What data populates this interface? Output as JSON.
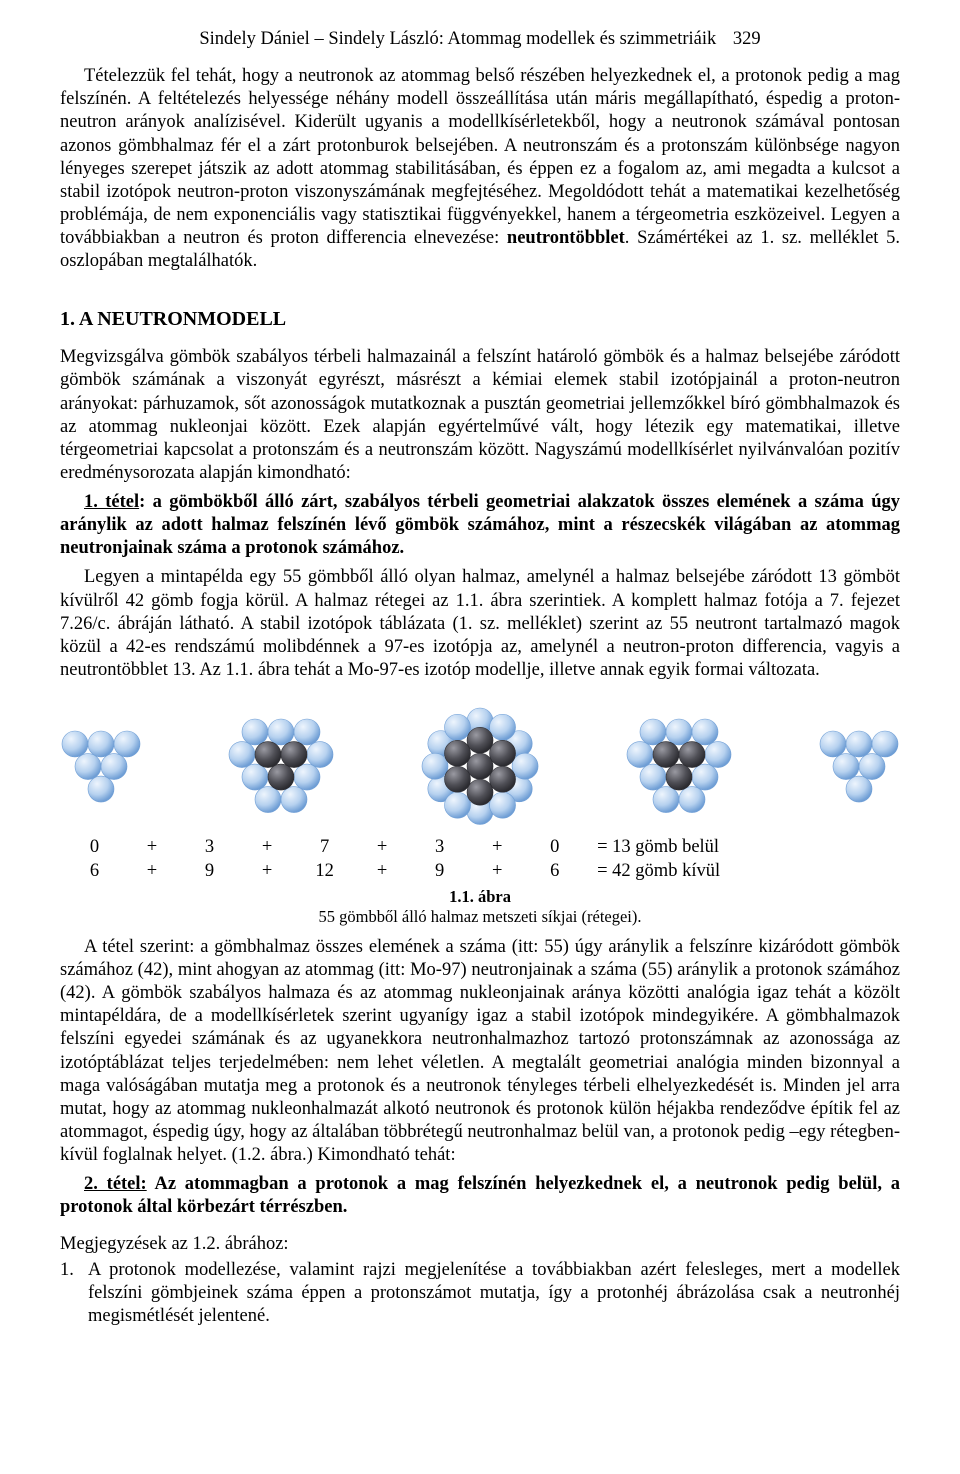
{
  "page": {
    "running_head_text": "Sindely Dániel – Sindely László: Atommag modellek és szimmetriáik",
    "page_number": "329"
  },
  "paragraphs": {
    "p1_a": "Tételezzük fel tehát, hogy a neutronok az atommag belső részében helyezkednek el, a protonok pedig a mag felszínén. A feltételezés helyessége néhány modell összeállítása után máris megállapítható, éspedig a proton-neutron arányok analízisével. Kiderült ugyanis a modellkísérletekből, hogy a neutronok számával pontosan azonos gömbhalmaz fér el a zárt protonburok belsejében. A neutronszám és a protonszám különbsége nagyon lényeges szerepet játszik az adott atommag stabilitásában, és éppen ez a fogalom az, ami megadta a kulcsot a stabil izotópok neutron-proton viszonyszámának megfejtéséhez. Megoldódott tehát a matematikai kezelhetőség problémája, de nem exponenciális vagy statisztikai függvényekkel, hanem a térgeometria eszközeivel. Legyen a továbbiakban a neutron és proton differencia elnevezése: ",
    "p1_bold": "neutrontöbblet",
    "p1_b": ". Számértékei az 1. sz. melléklet 5. oszlopában megtalálhatók.",
    "h2": "1.  A  NEUTRONMODELL",
    "p2": "Megvizsgálva gömbök szabályos térbeli halmazainál a felszínt határoló gömbök és a halmaz belsejébe záródott gömbök számának a viszonyát egyrészt, másrészt a kémiai elemek stabil izotópjainál a proton-neutron arányokat: párhuzamok, sőt azonosságok mutatkoznak a pusztán geometriai jellemzőkkel bíró gömbhalmazok és az atommag nukleonjai között. Ezek alapján egyértelművé vált, hogy létezik egy matematikai, illetve térgeometriai kapcsolat a protonszám és a neutronszám között. Nagyszámú modellkísérlet nyilvánvalóan pozitív eredménysorozata alapján kimondható:",
    "thesis1_lead_u": "1. tétel",
    "thesis1_rest": ": a gömbökből álló zárt, szabályos térbeli geometriai alakzatok összes elemének a száma úgy aránylik az adott halmaz felszínén lévő gömbök számához, mint a részecskék világában az atommag neutronjainak száma a protonok számához.",
    "p3": "Legyen a mintapélda egy 55 gömbből álló olyan halmaz, amelynél a halmaz belsejébe záródott 13 gömböt kívülről 42 gömb fogja körül. A halmaz rétegei az 1.1. ábra szerintiek. A komplett halmaz fotója a 7. fejezet 7.26/c. ábráján látható. A stabil izotópok táblázata (1. sz. melléklet) szerint az 55 neutront tartalmazó magok közül a 42-es rendszámú molibdénnek a 97-es izotópja az, amelynél a neutron-proton differencia, vagyis a neutrontöbblet 13. Az 1.1. ábra tehát a Mo-97-es izotóp modellje, illetve annak egyik formai változata.",
    "p4": "A tétel szerint: a gömbhalmaz összes elemének a száma (itt: 55) úgy aránylik a felszínre kizáródott gömbök számához (42), mint ahogyan az atommag (itt: Mo-97) neutronjainak a száma (55) aránylik a protonok számához (42). A gömbök szabályos halmaza és az atommag nukleonjainak aránya közötti analógia igaz tehát a közölt mintapéldára, de a modellkísérletek szerint ugyanígy igaz a stabil izotópok mindegyikére. A gömbhalmazok felszíni egyedei számának és az ugyanekkora neutronhalmazhoz tartozó protonszámnak az azonossága az izotóptáblázat teljes terjedelmében: nem lehet véletlen. A megtalált geometriai analógia minden bizonnyal a maga valóságában mutatja meg a protonok és a neutronok tényleges térbeli elhelyezkedését is. Minden jel arra mutat, hogy az atommag nukleonhalmazát alkotó neutronok és protonok külön héjakba rendeződve építik fel az atommagot, éspedig úgy, hogy az általában többrétegű neutronhalmaz belül van, a protonok pedig –egy rétegben- kívül foglalnak helyet. (1.2. ábra.) Kimondható tehát:",
    "thesis2_lead_u": "2. tétel:",
    "thesis2_rest": "   Az atommagban a protonok a mag felszínén helyezkednek el, a neutronok pedig belül, a protonok által körbezárt térrészben.",
    "notes_head": "Megjegyzések az 1.2. ábrához:",
    "note1_marker": "1.",
    "note1": "A protonok modellezése, valamint rajzi megjelenítése a továbbiakban azért felesleges, mert a modellek felszíni gömbjeinek száma éppen a protonszámot mutatja, így a protonhéj ábrázolása csak a neutronhéj megismétlését jelentené."
  },
  "figure": {
    "type": "infographic",
    "clusters": [
      {
        "outer": 6,
        "inner": 0
      },
      {
        "outer": 9,
        "inner": 3
      },
      {
        "outer": 12,
        "inner": 7
      },
      {
        "outer": 9,
        "inner": 3
      },
      {
        "outer": 6,
        "inner": 0
      }
    ],
    "inner_sum": {
      "values": [
        "0",
        "3",
        "7",
        "3",
        "0"
      ],
      "result": "= 13 gömb belül"
    },
    "outer_sum": {
      "values": [
        "6",
        "9",
        "12",
        "9",
        "6"
      ],
      "result": "= 42 gömb kívül"
    },
    "plus": "+",
    "caption_title": "1.1. ábra",
    "caption_text": "55 gömbből álló halmaz metszeti síkjai (rétegei).",
    "colors": {
      "outer_fill": "#b6d1ef",
      "outer_stroke": "#6f9ed5",
      "outer_highlight": "#eef5fd",
      "inner_fill": "#4f4f56",
      "inner_stroke": "#2b2b30",
      "inner_highlight": "#9a9aa2"
    },
    "sphere_radius": 13
  }
}
